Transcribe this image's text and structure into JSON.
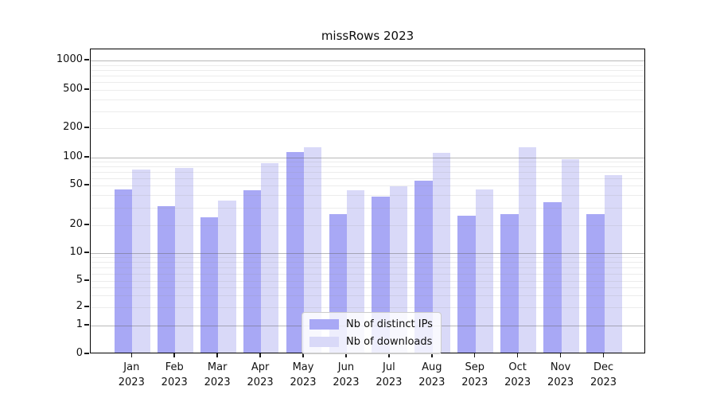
{
  "figure": {
    "title": "missRows 2023"
  },
  "chart_data": {
    "type": "bar",
    "title": "missRows 2023",
    "months": [
      "Jan",
      "Feb",
      "Mar",
      "Apr",
      "May",
      "Jun",
      "Jul",
      "Aug",
      "Sep",
      "Oct",
      "Nov",
      "Dec"
    ],
    "year": "2023",
    "categories": [
      "Jan 2023",
      "Feb 2023",
      "Mar 2023",
      "Apr 2023",
      "May 2023",
      "Jun 2023",
      "Jul 2023",
      "Aug 2023",
      "Sep 2023",
      "Oct 2023",
      "Nov 2023",
      "Dec 2023"
    ],
    "series": [
      {
        "name": "Nb of distinct IPs",
        "color": "#a8a8f5",
        "values": [
          44,
          30,
          23,
          43,
          110,
          25,
          37,
          54,
          24,
          25,
          33,
          25
        ]
      },
      {
        "name": "Nb of downloads",
        "color": "#d9d9f8",
        "values": [
          71,
          74,
          34,
          84,
          123,
          43,
          47,
          107,
          44,
          123,
          93,
          62
        ]
      }
    ],
    "yscale": "symlog",
    "y_ticks": [
      0,
      1,
      2,
      5,
      10,
      20,
      50,
      100,
      200,
      500,
      1000
    ],
    "ylim": [
      0,
      1300
    ],
    "xlabel": "",
    "ylabel": "",
    "grid": true,
    "grid_over_bars": true,
    "legend_position": "lower center",
    "major_grid_values": [
      1,
      10,
      100,
      1000
    ],
    "minor_grid_base_multiples": [
      2,
      3,
      4,
      5,
      6,
      7,
      8,
      9
    ]
  }
}
